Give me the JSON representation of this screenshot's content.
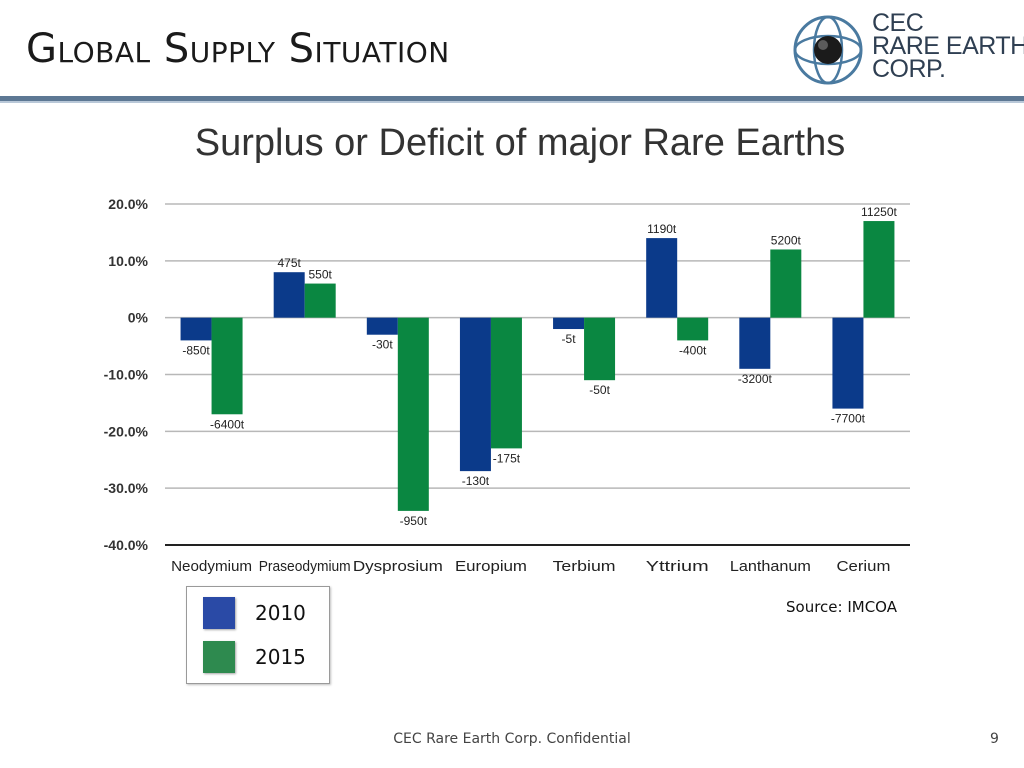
{
  "slide": {
    "title": "Global Supply Situation",
    "source": "Source: IMCOA",
    "footer": "CEC Rare Earth Corp. Confidential",
    "page_number": "9"
  },
  "logo": {
    "icon": "globe-icon",
    "lines": [
      "CEC",
      "RARE EARTH",
      "CORP."
    ]
  },
  "colors": {
    "title_rule": "#5d7894",
    "series_2010": "#0b3a8a",
    "series_2015": "#0a8741",
    "legend_2010": "#2a4aa6",
    "legend_2015": "#2e8a4f"
  },
  "chart_data": {
    "type": "bar",
    "title": "Surplus or Deficit of major Rare Earths",
    "xlabel": "",
    "ylabel": "",
    "ylim": [
      -40,
      20
    ],
    "yticks": [
      20,
      10,
      0,
      -10,
      -20,
      -30,
      -40
    ],
    "ytick_labels": [
      "20.0%",
      "10.0%",
      "0%",
      "-10.0%",
      "-20.0%",
      "-30.0%",
      "-40.0%"
    ],
    "grid": true,
    "legend_position": "bottom-left",
    "categories": [
      "Neodymium",
      "Praseodymium",
      "Dysprosium",
      "Europium",
      "Terbium",
      "Yttrium",
      "Lanthanum",
      "Cerium"
    ],
    "series": [
      {
        "name": "2010",
        "values": [
          -4,
          8,
          -3,
          -27,
          -2,
          14,
          -9,
          -16
        ],
        "labels": [
          "-850t",
          "475t",
          "-30t",
          "-130t",
          "-5t",
          "1190t",
          "-3200t",
          "-7700t"
        ]
      },
      {
        "name": "2015",
        "values": [
          -17,
          6,
          -34,
          -23,
          -11,
          -4,
          12,
          17
        ],
        "labels": [
          "-6400t",
          "550t",
          "-950t",
          "-175t",
          "-50t",
          "-400t",
          "5200t",
          "11250t"
        ]
      }
    ]
  }
}
